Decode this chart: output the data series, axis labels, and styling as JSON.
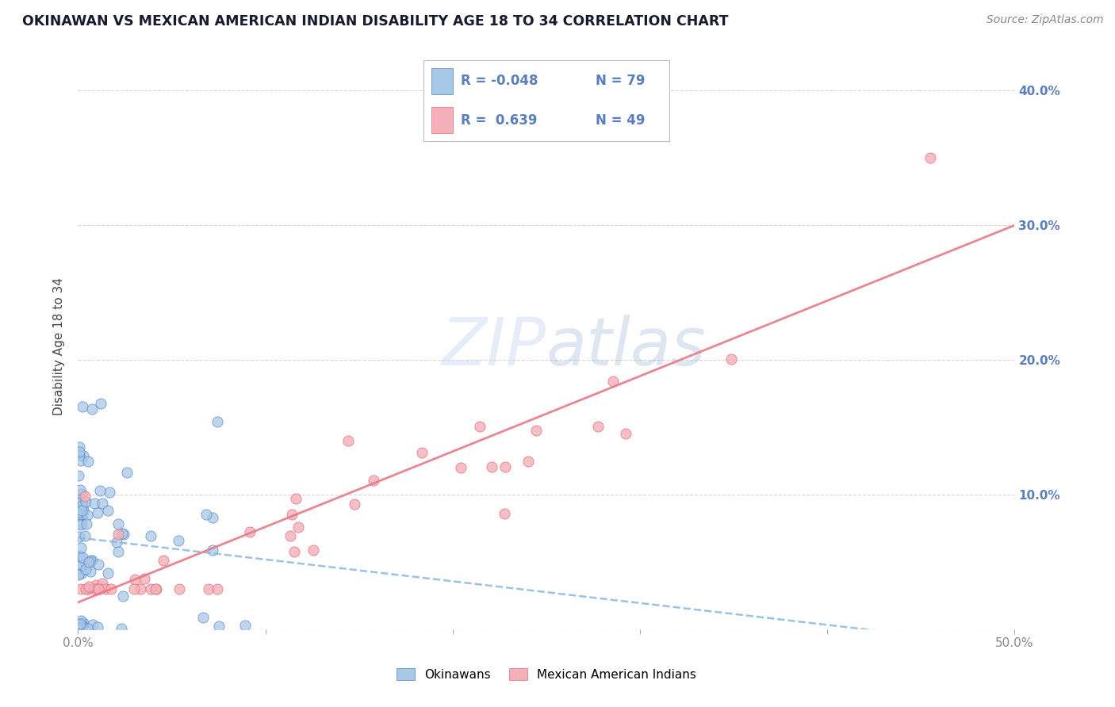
{
  "title": "OKINAWAN VS MEXICAN AMERICAN INDIAN DISABILITY AGE 18 TO 34 CORRELATION CHART",
  "source": "Source: ZipAtlas.com",
  "ylabel": "Disability Age 18 to 34",
  "xlim": [
    0.0,
    0.5
  ],
  "ylim": [
    0.0,
    0.42
  ],
  "xticks": [
    0.0,
    0.1,
    0.2,
    0.3,
    0.4,
    0.5
  ],
  "xticklabels": [
    "0.0%",
    "",
    "",
    "",
    "",
    "50.0%"
  ],
  "yticks": [
    0.0,
    0.1,
    0.2,
    0.3,
    0.4
  ],
  "yticklabels_left": [
    "",
    "",
    "",
    "",
    ""
  ],
  "yticklabels_right": [
    "",
    "10.0%",
    "20.0%",
    "30.0%",
    "40.0%"
  ],
  "grid_color": "#cccccc",
  "background_color": "#ffffff",
  "okinawan_color": "#A8C8E8",
  "okinawan_edge": "#5080C0",
  "mexican_color": "#F4B0B8",
  "mexican_edge": "#E06878",
  "trend_blue_color": "#88B8E0",
  "trend_pink_color": "#E87888",
  "legend_text_blue": "#5B7FBB",
  "legend_text_pink": "#E06878",
  "r1": -0.048,
  "n1": 79,
  "r2": 0.639,
  "n2": 49,
  "watermark_color": "#C8D8F0"
}
